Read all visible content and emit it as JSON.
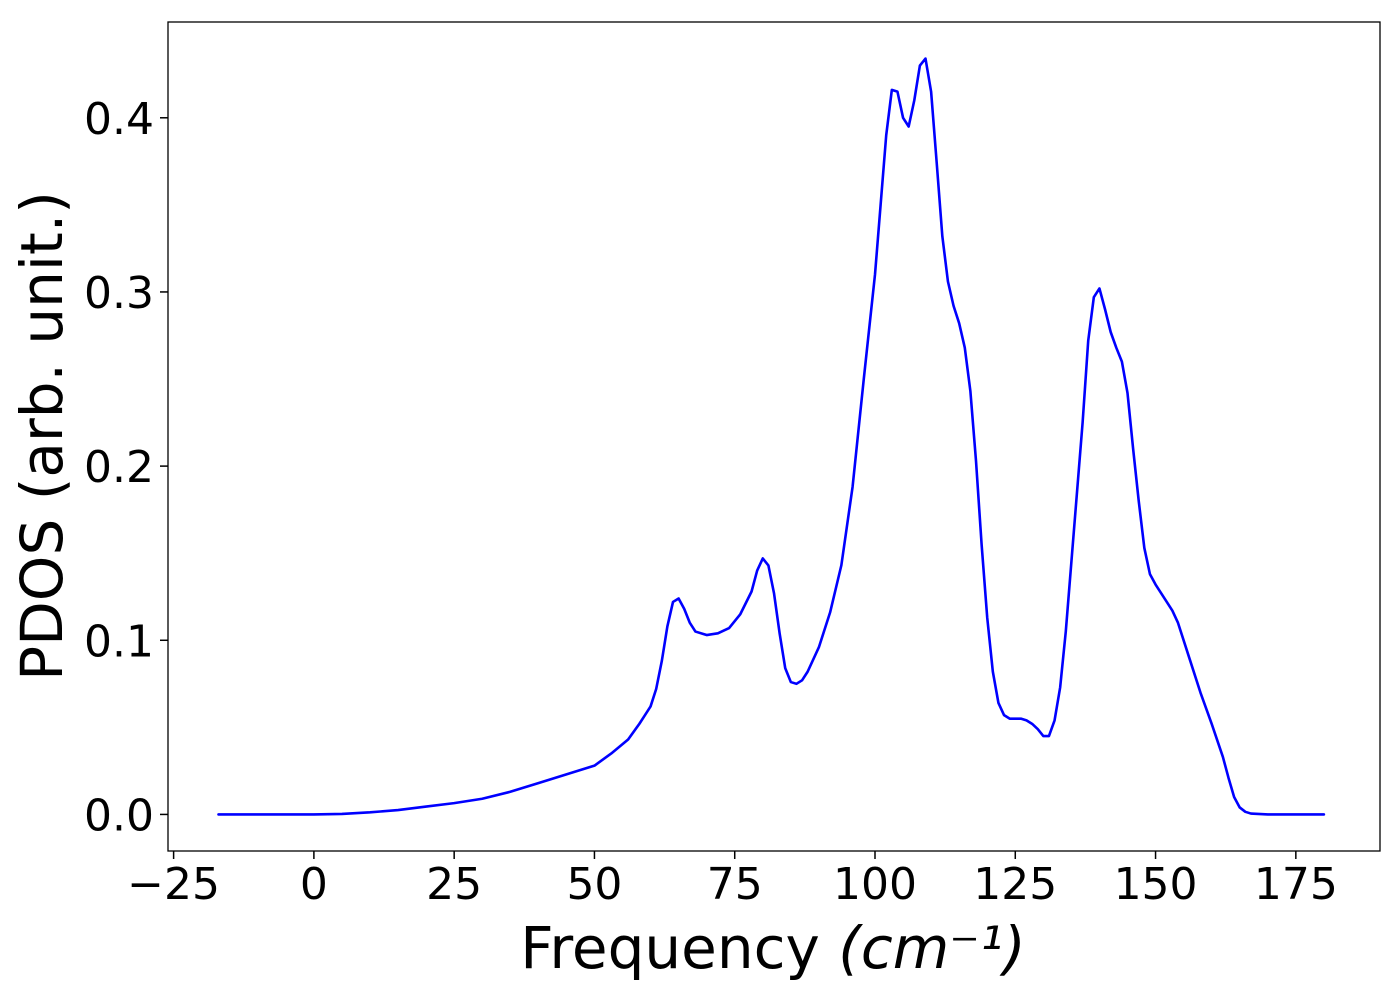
{
  "chart_data": {
    "type": "line",
    "xlabel": "Frequency",
    "xlabel_unit": "(cm⁻¹)",
    "ylabel": "PDOS (arb. unit.)",
    "xlim": [
      -26,
      190
    ],
    "ylim": [
      -0.021,
      0.455
    ],
    "x_ticks": [
      -25,
      0,
      25,
      50,
      75,
      100,
      125,
      150,
      175
    ],
    "x_tick_labels": [
      "−25",
      "0",
      "25",
      "50",
      "75",
      "100",
      "125",
      "150",
      "175"
    ],
    "y_ticks": [
      0.0,
      0.1,
      0.2,
      0.3,
      0.4
    ],
    "y_tick_labels": [
      "0.0",
      "0.1",
      "0.2",
      "0.3",
      "0.4"
    ],
    "grid": false,
    "series": [
      {
        "color": "#0000ff",
        "x": [
          -17,
          -10,
          0,
          5,
          10,
          15,
          20,
          25,
          30,
          35,
          40,
          45,
          48,
          50,
          53,
          56,
          58,
          59,
          60,
          61,
          62,
          63,
          64,
          65,
          66,
          67,
          68,
          70,
          72,
          74,
          76,
          78,
          79,
          80,
          81,
          82,
          83,
          84,
          85,
          86,
          87,
          88,
          90,
          92,
          94,
          96,
          98,
          100,
          101,
          102,
          103,
          104,
          105,
          106,
          107,
          108,
          109,
          110,
          111,
          112,
          113,
          114,
          115,
          116,
          117,
          118,
          119,
          120,
          121,
          122,
          123,
          124,
          125,
          126,
          127,
          128,
          129,
          130,
          131,
          132,
          133,
          134,
          135,
          136,
          137,
          138,
          139,
          140,
          141,
          142,
          143,
          144,
          145,
          146,
          147,
          148,
          149,
          150,
          152,
          153,
          154,
          156,
          158,
          160,
          162,
          163,
          164,
          165,
          166,
          167,
          170,
          175,
          180
        ],
        "y": [
          0,
          0,
          0,
          0.0003,
          0.0012,
          0.0025,
          0.0045,
          0.0065,
          0.009,
          0.013,
          0.018,
          0.023,
          0.026,
          0.028,
          0.035,
          0.043,
          0.052,
          0.057,
          0.062,
          0.072,
          0.088,
          0.108,
          0.122,
          0.124,
          0.118,
          0.11,
          0.105,
          0.103,
          0.104,
          0.107,
          0.115,
          0.128,
          0.14,
          0.147,
          0.143,
          0.127,
          0.104,
          0.084,
          0.076,
          0.075,
          0.077,
          0.082,
          0.096,
          0.116,
          0.143,
          0.188,
          0.25,
          0.31,
          0.35,
          0.39,
          0.416,
          0.415,
          0.4,
          0.395,
          0.41,
          0.43,
          0.434,
          0.415,
          0.374,
          0.332,
          0.306,
          0.292,
          0.282,
          0.268,
          0.243,
          0.203,
          0.155,
          0.113,
          0.082,
          0.064,
          0.057,
          0.055,
          0.055,
          0.055,
          0.054,
          0.052,
          0.049,
          0.045,
          0.045,
          0.054,
          0.073,
          0.105,
          0.145,
          0.185,
          0.225,
          0.272,
          0.297,
          0.302,
          0.29,
          0.277,
          0.268,
          0.26,
          0.242,
          0.21,
          0.18,
          0.153,
          0.138,
          0.132,
          0.122,
          0.117,
          0.11,
          0.09,
          0.07,
          0.052,
          0.033,
          0.021,
          0.01,
          0.004,
          0.0015,
          0.0005,
          0,
          0,
          0
        ]
      }
    ]
  }
}
